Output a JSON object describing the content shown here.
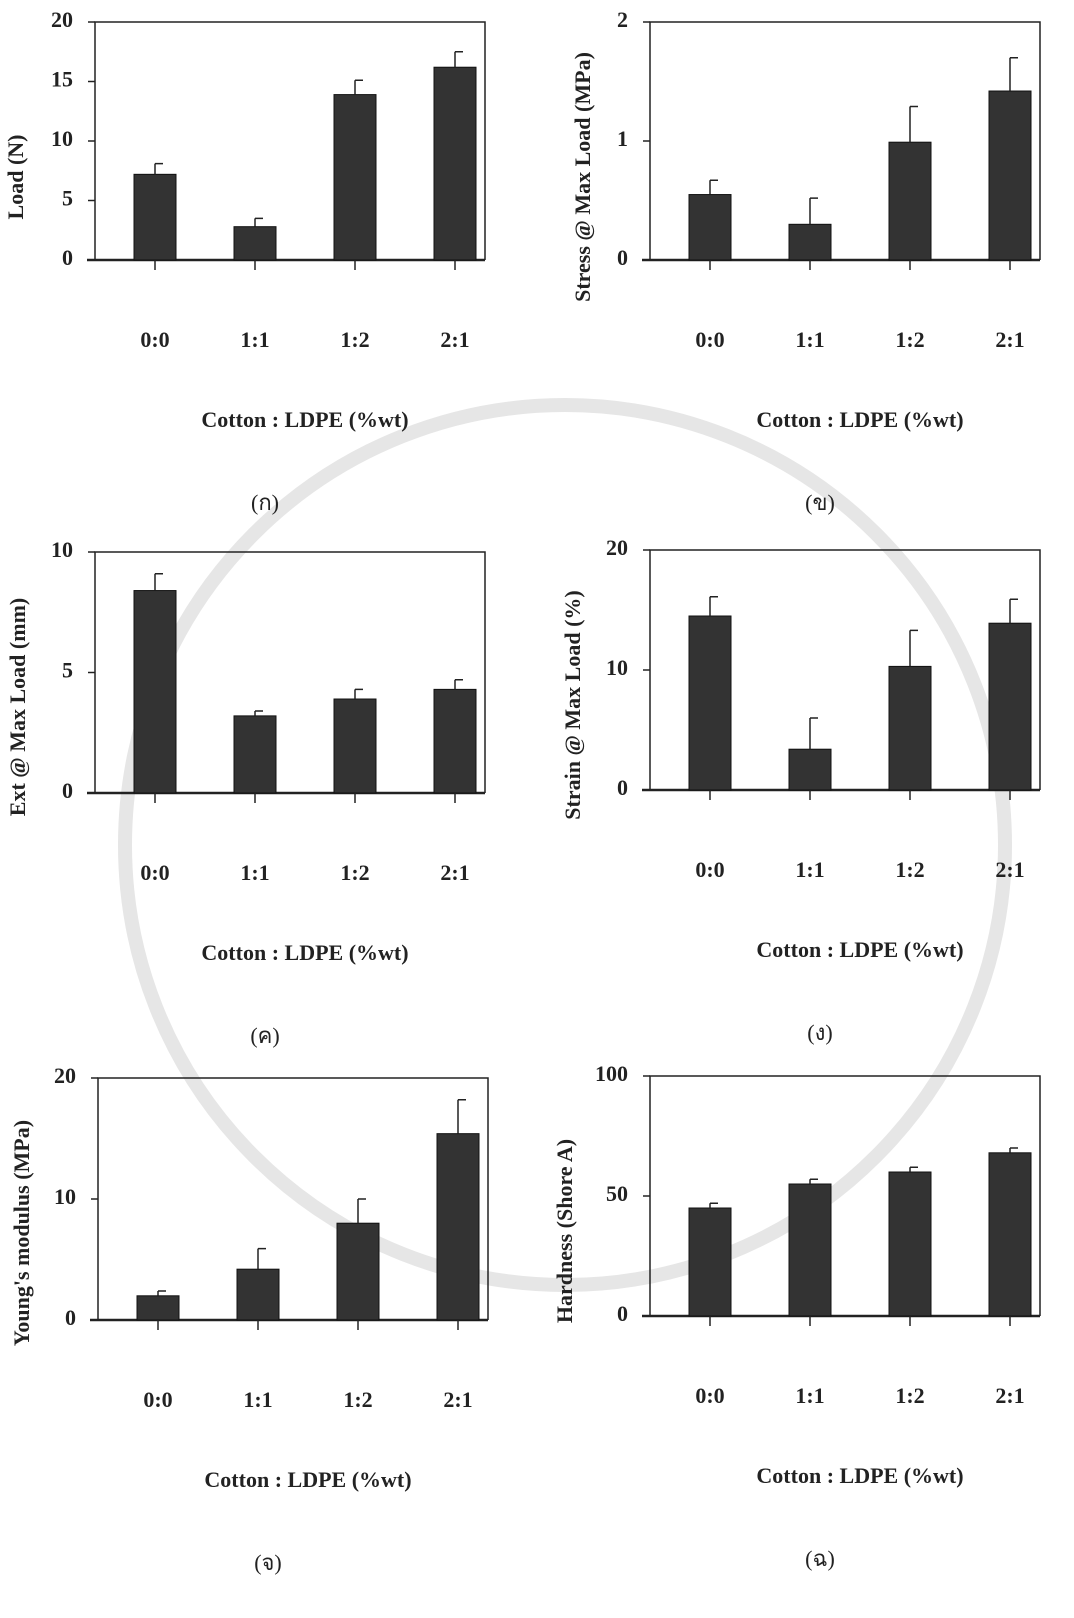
{
  "chart_data": [
    {
      "type": "bar",
      "ylabel": "Load (N)",
      "xlabel": "Cotton : LDPE (%wt)",
      "caption": "(ก)",
      "categories": [
        "0:0",
        "1:1",
        "1:2",
        "2:1"
      ],
      "values": [
        7.2,
        2.8,
        13.9,
        16.2
      ],
      "errors": [
        0.9,
        0.7,
        1.2,
        1.3
      ],
      "ylim": [
        0,
        20
      ],
      "yticks": [
        0,
        5,
        10,
        15,
        20
      ],
      "color": "#333333"
    },
    {
      "type": "bar",
      "ylabel": "Stress @ Max Load (MPa)",
      "xlabel": "Cotton : LDPE (%wt)",
      "caption": "(ข)",
      "categories": [
        "0:0",
        "1:1",
        "1:2",
        "2:1"
      ],
      "values": [
        0.55,
        0.3,
        0.99,
        1.42
      ],
      "errors": [
        0.12,
        0.22,
        0.3,
        0.28
      ],
      "ylim": [
        0,
        2
      ],
      "yticks": [
        0,
        1,
        2
      ],
      "color": "#333333"
    },
    {
      "type": "bar",
      "ylabel": "Ext @ Max Load (mm)",
      "xlabel": "Cotton : LDPE (%wt)",
      "caption": "(ค)",
      "categories": [
        "0:0",
        "1:1",
        "1:2",
        "2:1"
      ],
      "values": [
        8.4,
        3.2,
        3.9,
        4.3
      ],
      "errors": [
        0.7,
        0.2,
        0.4,
        0.4
      ],
      "ylim": [
        0,
        10
      ],
      "yticks": [
        0,
        5,
        10
      ],
      "color": "#333333"
    },
    {
      "type": "bar",
      "ylabel": "Strain @ Max Load (%)",
      "xlabel": "Cotton : LDPE (%wt)",
      "caption": "(ง)",
      "categories": [
        "0:0",
        "1:1",
        "1:2",
        "2:1"
      ],
      "values": [
        14.5,
        3.4,
        10.3,
        13.9
      ],
      "errors": [
        1.6,
        2.6,
        3.0,
        2.0
      ],
      "ylim": [
        0,
        20
      ],
      "yticks": [
        0,
        10,
        20
      ],
      "color": "#333333"
    },
    {
      "type": "bar",
      "ylabel": "Young's modulus (MPa)",
      "xlabel": "Cotton : LDPE (%wt)",
      "caption": "(จ)",
      "categories": [
        "0:0",
        "1:1",
        "1:2",
        "2:1"
      ],
      "values": [
        2.0,
        4.2,
        8.0,
        15.4
      ],
      "errors": [
        0.4,
        1.7,
        2.0,
        2.8
      ],
      "ylim": [
        0,
        20
      ],
      "yticks": [
        0,
        10,
        20
      ],
      "color": "#333333"
    },
    {
      "type": "bar",
      "ylabel": "Hardness (Shore A)",
      "xlabel": "Cotton : LDPE (%wt)",
      "caption": "(ฉ)",
      "categories": [
        "0:0",
        "1:1",
        "1:2",
        "2:1"
      ],
      "values": [
        45,
        55,
        60,
        68
      ],
      "errors": [
        2,
        2,
        2,
        2
      ],
      "ylim": [
        0,
        100
      ],
      "yticks": [
        0,
        50,
        100
      ],
      "color": "#333333"
    }
  ]
}
